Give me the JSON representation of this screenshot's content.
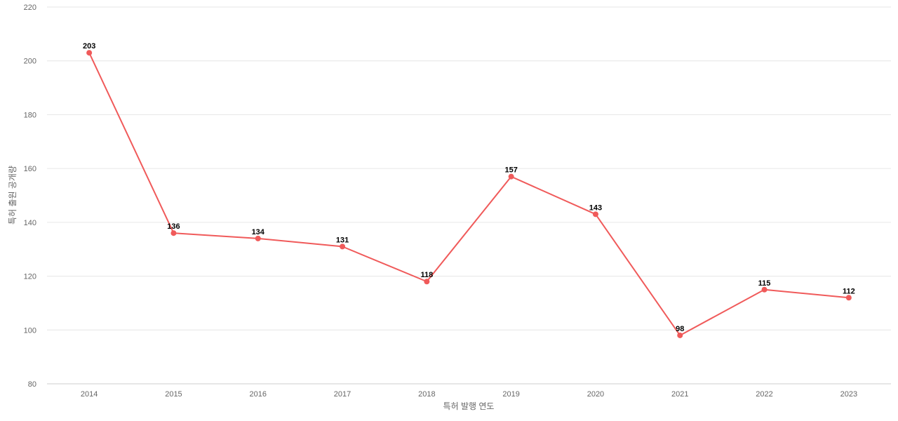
{
  "chart_data": {
    "type": "line",
    "title": "",
    "xlabel": "특허 발행 연도",
    "ylabel": "특허 출원 공개량",
    "categories": [
      "2014",
      "2015",
      "2016",
      "2017",
      "2018",
      "2019",
      "2020",
      "2021",
      "2022",
      "2023"
    ],
    "series": [
      {
        "values": [
          203,
          136,
          134,
          131,
          118,
          157,
          143,
          98,
          115,
          112
        ],
        "color": "#f05a5a"
      }
    ],
    "ylim": [
      80,
      220
    ],
    "yticks": [
      80,
      100,
      120,
      140,
      160,
      180,
      200,
      220
    ],
    "grid": true,
    "data_labels": true,
    "legend": "none"
  }
}
